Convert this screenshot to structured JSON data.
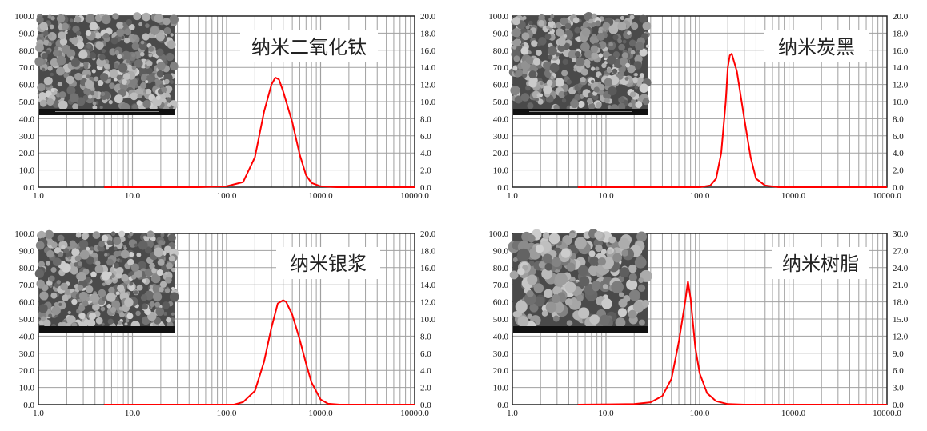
{
  "chart_data": [
    {
      "type": "line",
      "title": "纳米二氧化钛",
      "x_scale": "log",
      "xlim": [
        1,
        10000
      ],
      "x_tick_labels": [
        "1.0",
        "10.0",
        "100.0",
        "1000.0",
        "10000.0"
      ],
      "ylim_left": [
        0,
        100
      ],
      "y_left_tick_labels": [
        "0.0",
        "10.0",
        "20.0",
        "30.0",
        "40.0",
        "50.0",
        "60.0",
        "70.0",
        "80.0",
        "90.0",
        "100.0"
      ],
      "ylim_right": [
        0,
        20
      ],
      "y_right_tick_labels": [
        "0.0",
        "2.0",
        "4.0",
        "6.0",
        "8.0",
        "10.0",
        "12.0",
        "14.0",
        "16.0",
        "18.0",
        "20.0"
      ],
      "grid": true,
      "inset": "SEM micrograph",
      "line_color": "#ff0000",
      "series": [
        {
          "axis": "right",
          "x": [
            5,
            50,
            100,
            150,
            200,
            250,
            300,
            330,
            360,
            400,
            500,
            600,
            700,
            800,
            1000,
            1500,
            10000
          ],
          "y": [
            0,
            0,
            0.1,
            0.6,
            3.5,
            8.8,
            12.0,
            12.8,
            12.6,
            11.2,
            7.6,
            3.8,
            1.4,
            0.5,
            0.1,
            0,
            0
          ]
        }
      ]
    },
    {
      "type": "line",
      "title": "纳米炭黑",
      "x_scale": "log",
      "xlim": [
        1,
        10000
      ],
      "x_tick_labels": [
        "1.0",
        "10.0",
        "100.0",
        "1000.0",
        "10000.0"
      ],
      "ylim_left": [
        0,
        100
      ],
      "y_left_tick_labels": [
        "0.0",
        "10.0",
        "20.0",
        "30.0",
        "40.0",
        "50.0",
        "60.0",
        "70.0",
        "80.0",
        "90.0",
        "100.0"
      ],
      "ylim_right": [
        0,
        20
      ],
      "y_right_tick_labels": [
        "0.0",
        "2.0",
        "4.0",
        "6.0",
        "8.0",
        "10.0",
        "12.0",
        "14.0",
        "16.0",
        "18.0",
        "20.0"
      ],
      "grid": true,
      "inset": "SEM micrograph",
      "line_color": "#ff0000",
      "series": [
        {
          "axis": "right",
          "x": [
            5,
            100,
            130,
            150,
            170,
            190,
            200,
            210,
            220,
            250,
            300,
            350,
            400,
            500,
            700,
            10000
          ],
          "y": [
            0,
            0,
            0.2,
            1.0,
            4.0,
            10.0,
            14.0,
            15.4,
            15.6,
            13.5,
            8.0,
            3.5,
            1.0,
            0.2,
            0,
            0
          ]
        }
      ]
    },
    {
      "type": "line",
      "title": "纳米银浆",
      "x_scale": "log",
      "xlim": [
        1,
        10000
      ],
      "x_tick_labels": [
        "1.0",
        "10.0",
        "100.0",
        "1000.0",
        "10000.0"
      ],
      "ylim_left": [
        0,
        100
      ],
      "y_left_tick_labels": [
        "0.0",
        "10.0",
        "20.0",
        "30.0",
        "40.0",
        "50.0",
        "60.0",
        "70.0",
        "80.0",
        "90.0",
        "100.0"
      ],
      "ylim_right": [
        0,
        20
      ],
      "y_right_tick_labels": [
        "0.0",
        "2.0",
        "4.0",
        "6.0",
        "8.0",
        "10.0",
        "12.0",
        "14.0",
        "16.0",
        "18.0",
        "20.0"
      ],
      "grid": true,
      "inset": "SEM micrograph",
      "line_color": "#ff0000",
      "series": [
        {
          "axis": "right",
          "x": [
            5,
            120,
            150,
            200,
            250,
            300,
            350,
            400,
            430,
            500,
            600,
            700,
            800,
            1000,
            1200,
            1600,
            10000
          ],
          "y": [
            0,
            0,
            0.3,
            1.6,
            5.0,
            9.0,
            11.8,
            12.2,
            12.0,
            10.5,
            7.6,
            4.8,
            2.6,
            0.6,
            0.1,
            0,
            0
          ]
        }
      ]
    },
    {
      "type": "line",
      "title": "纳米树脂",
      "x_scale": "log",
      "xlim": [
        1,
        10000
      ],
      "x_tick_labels": [
        "1.0",
        "10.0",
        "100.0",
        "1000.0",
        "10000.0"
      ],
      "ylim_left": [
        0,
        100
      ],
      "y_left_tick_labels": [
        "0.0",
        "10.0",
        "20.0",
        "30.0",
        "40.0",
        "50.0",
        "60.0",
        "70.0",
        "80.0",
        "90.0",
        "100.0"
      ],
      "ylim_right": [
        0,
        30
      ],
      "y_right_tick_labels": [
        "0.0",
        "3.0",
        "6.0",
        "9.0",
        "12.0",
        "15.0",
        "18.0",
        "21.0",
        "24.0",
        "27.0",
        "30.0"
      ],
      "grid": true,
      "inset": "SEM micrograph",
      "line_color": "#ff0000",
      "series": [
        {
          "axis": "right",
          "x": [
            5,
            20,
            30,
            40,
            50,
            60,
            70,
            75,
            80,
            90,
            100,
            120,
            150,
            200,
            300,
            10000
          ],
          "y": [
            0,
            0.1,
            0.4,
            1.5,
            4.5,
            11.0,
            18.0,
            21.6,
            18.6,
            10.0,
            5.5,
            2.0,
            0.6,
            0.1,
            0,
            0
          ]
        }
      ]
    }
  ]
}
